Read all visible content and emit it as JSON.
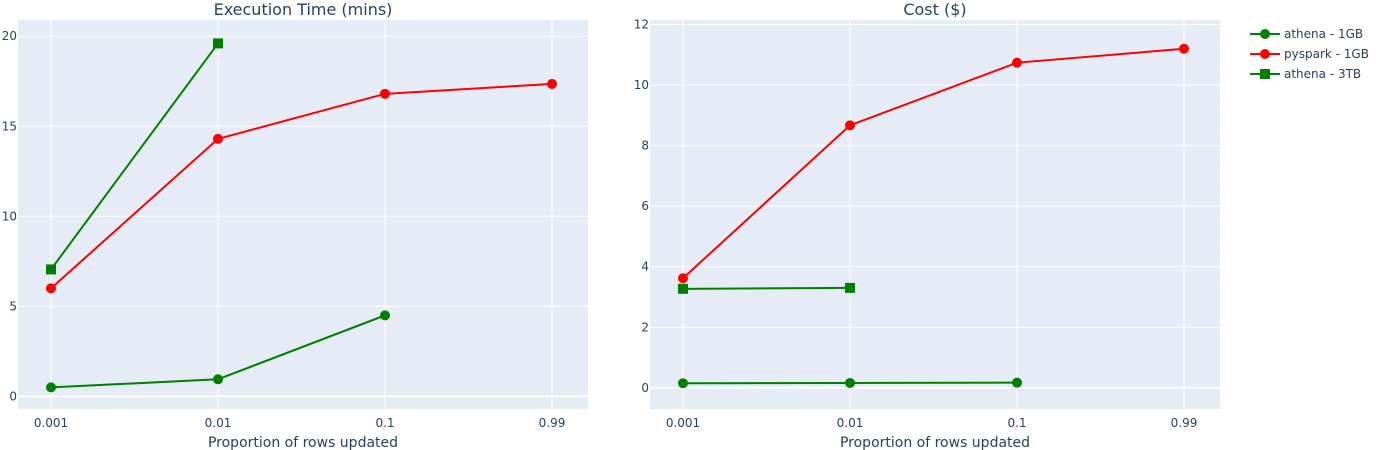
{
  "chart_data": [
    {
      "type": "line",
      "title": "Execution Time (mins)",
      "xlabel": "Proportion of rows updated",
      "ylabel": "",
      "categories": [
        "0.001",
        "0.01",
        "0.1",
        "0.99"
      ],
      "ylim": [
        -0.7,
        20.9
      ],
      "yticks": [
        0,
        5,
        10,
        15,
        20
      ],
      "grid": true,
      "series": [
        {
          "name": "athena - 1GB",
          "values": [
            0.5,
            0.95,
            4.5,
            null
          ],
          "color": "#008000",
          "marker": "circle"
        },
        {
          "name": "pyspark - 1GB",
          "values": [
            6.0,
            14.3,
            16.8,
            17.35
          ],
          "color": "#ff0000",
          "marker": "circle"
        },
        {
          "name": "athena - 3TB",
          "values": [
            7.05,
            19.6,
            null,
            null
          ],
          "color": "#008000",
          "marker": "square"
        }
      ]
    },
    {
      "type": "line",
      "title": "Cost ($)",
      "xlabel": "Proportion of rows updated",
      "ylabel": "",
      "categories": [
        "0.001",
        "0.01",
        "0.1",
        "0.99"
      ],
      "ylim": [
        -0.7,
        12.15
      ],
      "yticks": [
        0,
        2,
        4,
        6,
        8,
        10,
        12
      ],
      "grid": true,
      "series": [
        {
          "name": "athena - 1GB",
          "values": [
            0.15,
            0.16,
            0.17,
            null
          ],
          "color": "#008000",
          "marker": "circle"
        },
        {
          "name": "pyspark - 1GB",
          "values": [
            3.62,
            8.67,
            10.74,
            11.2
          ],
          "color": "#ff0000",
          "marker": "circle"
        },
        {
          "name": "athena - 3TB",
          "values": [
            3.27,
            3.3,
            null,
            null
          ],
          "color": "#008000",
          "marker": "square"
        }
      ]
    }
  ],
  "legend": {
    "placement": "top-right",
    "items": [
      {
        "label": "athena - 1GB",
        "color": "#008000",
        "marker": "circle"
      },
      {
        "label": "pyspark - 1GB",
        "color": "#ff0000",
        "marker": "circle"
      },
      {
        "label": "athena - 3TB",
        "color": "#008000",
        "marker": "square"
      }
    ]
  },
  "colors": {
    "plot_bg": "#e5ecf6",
    "grid": "#ffffff",
    "text": "#2a3f5f"
  }
}
